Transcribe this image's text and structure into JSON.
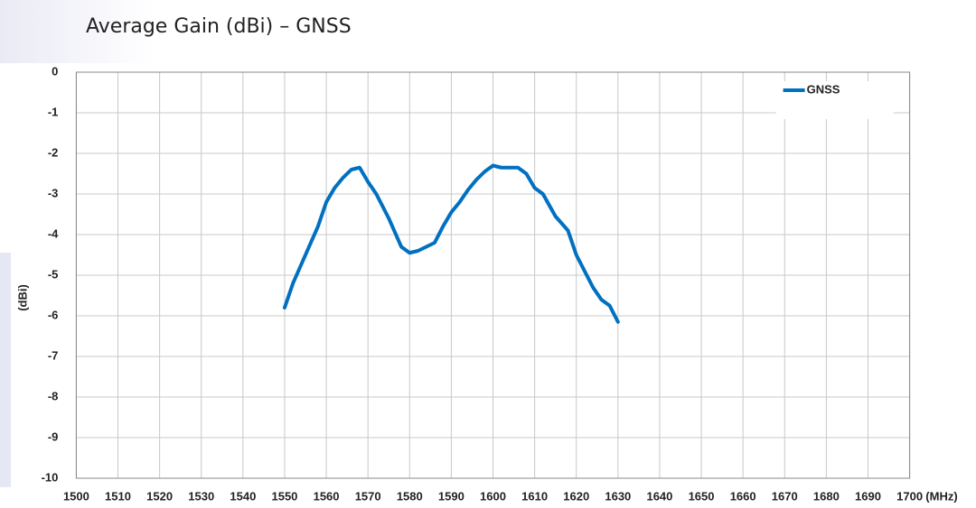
{
  "chart_data": {
    "type": "line",
    "title": "Average Gain (dBi) – GNSS",
    "x_label": "(MHz)",
    "y_label": "(dBi)",
    "x": [
      1550,
      1552,
      1555,
      1558,
      1560,
      1562,
      1564,
      1566,
      1568,
      1570,
      1572,
      1575,
      1578,
      1580,
      1582,
      1584,
      1586,
      1588,
      1590,
      1592,
      1594,
      1596,
      1598,
      1600,
      1602,
      1604,
      1606,
      1608,
      1610,
      1612,
      1615,
      1618,
      1620,
      1622,
      1624,
      1626,
      1628,
      1630
    ],
    "series": [
      {
        "name": "GNSS",
        "color": "#0070c0",
        "values": [
          -5.8,
          -5.2,
          -4.5,
          -3.8,
          -3.2,
          -2.85,
          -2.6,
          -2.4,
          -2.35,
          -2.7,
          -3.0,
          -3.6,
          -4.3,
          -4.45,
          -4.4,
          -4.3,
          -4.2,
          -3.8,
          -3.45,
          -3.2,
          -2.9,
          -2.65,
          -2.45,
          -2.3,
          -2.35,
          -2.35,
          -2.35,
          -2.5,
          -2.85,
          -3.0,
          -3.55,
          -3.9,
          -4.5,
          -4.9,
          -5.3,
          -5.6,
          -5.75,
          -6.15
        ]
      }
    ],
    "xlim": [
      1500,
      1700
    ],
    "xticks": [
      1500,
      1510,
      1520,
      1530,
      1540,
      1550,
      1560,
      1570,
      1580,
      1590,
      1600,
      1610,
      1620,
      1630,
      1640,
      1650,
      1660,
      1670,
      1680,
      1690,
      1700
    ],
    "ylim": [
      -10,
      0
    ],
    "yticks": [
      0,
      -1,
      -2,
      -3,
      -4,
      -5,
      -6,
      -7,
      -8,
      -9,
      -10
    ],
    "grid": true,
    "legend": "upper right"
  }
}
